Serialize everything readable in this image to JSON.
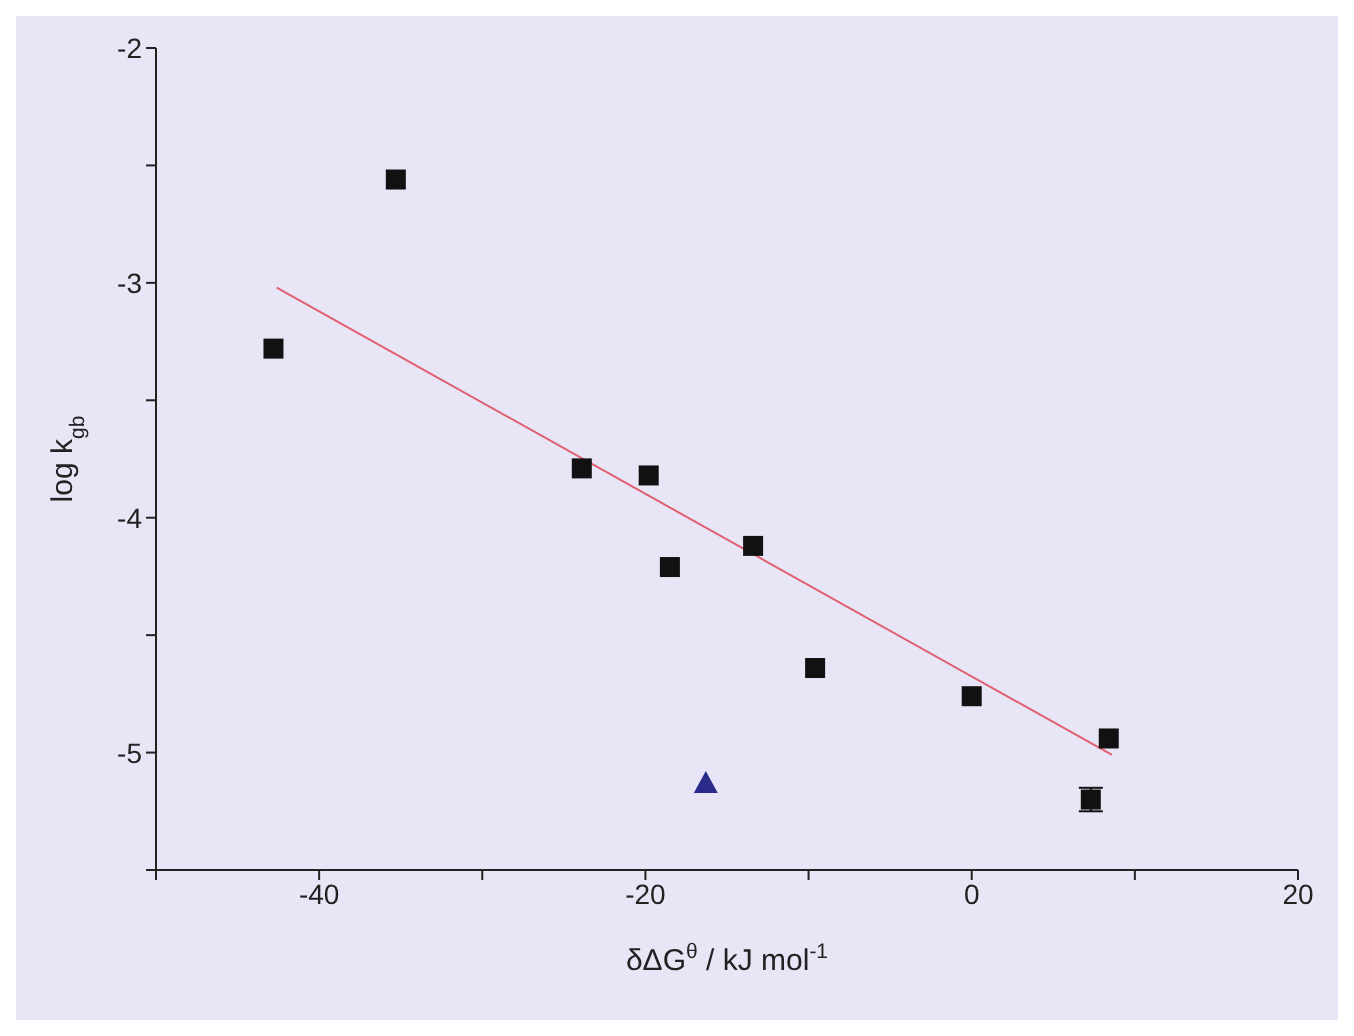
{
  "chart_data": {
    "type": "scatter",
    "xlabel": "δΔG$^{θ}$ / kJ mol$^{-1}$",
    "ylabel": "log k$_{gb}$",
    "xlim": [
      -50,
      20
    ],
    "xticks": [
      {
        "value": -50,
        "label": null
      },
      -40,
      {
        "value": -30,
        "label": null
      },
      -20,
      {
        "value": -10,
        "label": null
      },
      0,
      {
        "value": 10,
        "label": null
      },
      20
    ],
    "ylim": [
      -5.5,
      -2
    ],
    "yticks": [
      {
        "value": -5.5,
        "label": null
      },
      -5,
      {
        "value": -4.5,
        "label": null
      },
      -4,
      {
        "value": -3.5,
        "label": null
      },
      -3,
      {
        "value": -2.5,
        "label": null
      },
      -2
    ],
    "grid": false,
    "legend": false,
    "series": [
      {
        "marker": "square",
        "color": "#111111",
        "x": [
          -42.8,
          -35.3,
          -23.9,
          -19.8,
          -18.5,
          -13.4,
          -9.6,
          0,
          7.3,
          8.4
        ],
        "values": [
          -3.28,
          -2.56,
          -3.79,
          -3.82,
          -4.21,
          -4.12,
          -4.64,
          -4.76,
          -5.2,
          -4.94
        ],
        "errors": [
          null,
          null,
          null,
          null,
          null,
          null,
          null,
          null,
          0.05,
          null
        ]
      },
      {
        "marker": "triangle",
        "color": "#2b2b8c",
        "x": [
          -16.3
        ],
        "values": [
          -5.13
        ]
      },
      {
        "type": "line",
        "marker": "none",
        "line_style": "solid",
        "color": "#e06070",
        "x": [
          -42.6,
          8.6
        ],
        "values": [
          -3.02,
          -5.01
        ]
      }
    ]
  }
}
